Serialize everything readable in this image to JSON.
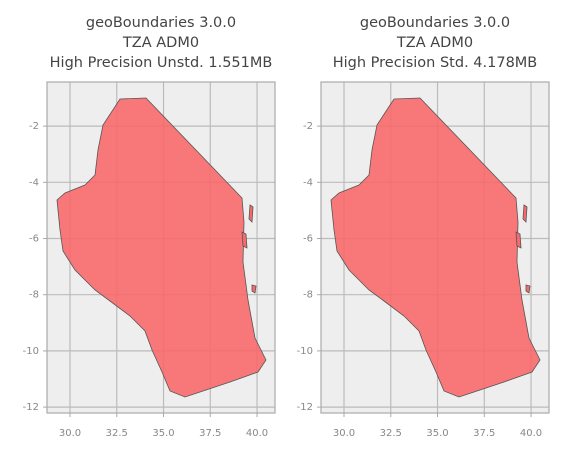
{
  "chart_data": [
    {
      "type": "map",
      "title": [
        "geoBoundaries 3.0.0",
        "TZA ADM0",
        "High Precision Unstd. 1.551MB"
      ],
      "fill": "#f8696b",
      "grid": true,
      "xlim": [
        28.77,
        40.96
      ],
      "ylim": [
        -12.21,
        -0.43
      ],
      "xticks": [
        {
          "value": 30,
          "label": "30.0"
        },
        {
          "value": 32.5,
          "label": "32.5"
        },
        {
          "value": 35,
          "label": "35.0"
        },
        {
          "value": 37.5,
          "label": "37.5"
        },
        {
          "value": 40,
          "label": "40.0"
        }
      ],
      "yticks": [
        -2,
        -4,
        -6,
        -8,
        -10,
        -12
      ]
    },
    {
      "type": "map",
      "title": [
        "geoBoundaries 3.0.0",
        "TZA ADM0",
        "High Precision Std. 4.178MB"
      ],
      "fill": "#f8696b",
      "grid": true,
      "xlim": [
        28.77,
        40.96
      ],
      "ylim": [
        -12.21,
        -0.43
      ],
      "xticks": [
        {
          "value": 30,
          "label": "30.0"
        },
        {
          "value": 32.5,
          "label": "32.5"
        },
        {
          "value": 35,
          "label": "35.0"
        },
        {
          "value": 37.5,
          "label": "37.5"
        },
        {
          "value": 40,
          "label": "40.0"
        }
      ],
      "yticks": [
        -2,
        -4,
        -6,
        -8,
        -10,
        -12
      ]
    }
  ]
}
